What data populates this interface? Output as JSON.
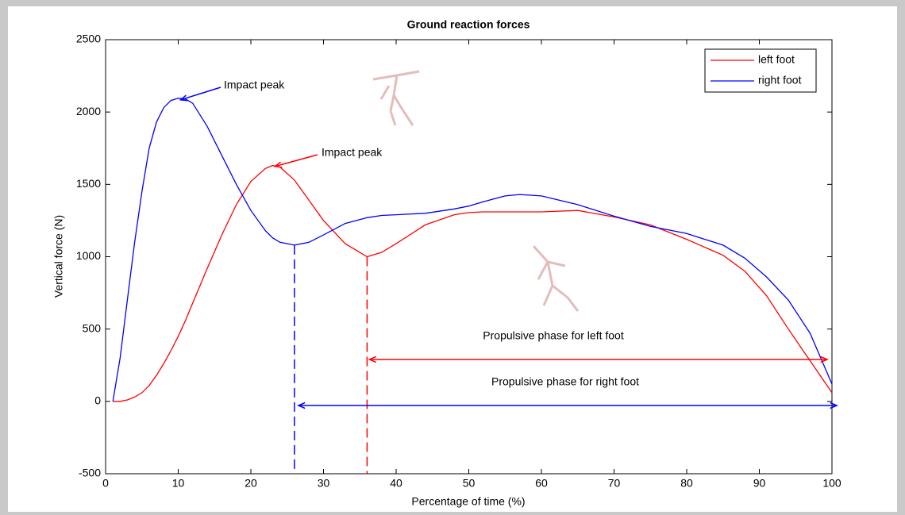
{
  "chart_data": {
    "type": "line",
    "title": "Ground reaction forces",
    "xlabel": "Percentage of time (%)",
    "ylabel": "Vertical force (N)",
    "x": [
      1,
      2,
      3,
      4,
      5,
      6,
      7,
      8,
      9,
      10,
      11,
      12,
      14,
      16,
      18,
      20,
      22,
      23,
      24,
      26,
      28,
      30,
      33,
      36,
      38,
      40,
      44,
      48,
      50,
      52,
      55,
      57,
      60,
      65,
      70,
      75,
      80,
      85,
      88,
      91,
      94,
      97,
      100
    ],
    "series": [
      {
        "name": "left foot",
        "color": "#ff0000",
        "values": [
          0,
          0,
          10,
          30,
          60,
          110,
          180,
          260,
          350,
          450,
          560,
          680,
          920,
          1150,
          1360,
          1520,
          1610,
          1630,
          1620,
          1530,
          1390,
          1250,
          1090,
          1000,
          1030,
          1090,
          1220,
          1290,
          1305,
          1310,
          1310,
          1310,
          1310,
          1320,
          1275,
          1220,
          1120,
          1010,
          900,
          730,
          500,
          280,
          60
        ]
      },
      {
        "name": "right foot",
        "color": "#0000ff",
        "values": [
          0,
          300,
          700,
          1100,
          1450,
          1750,
          1930,
          2030,
          2080,
          2095,
          2090,
          2060,
          1900,
          1700,
          1500,
          1320,
          1180,
          1130,
          1100,
          1080,
          1100,
          1150,
          1230,
          1270,
          1285,
          1290,
          1300,
          1330,
          1350,
          1380,
          1420,
          1430,
          1420,
          1360,
          1280,
          1210,
          1160,
          1080,
          990,
          860,
          700,
          470,
          120
        ]
      }
    ],
    "annotations": [
      {
        "text": "Impact peak",
        "color": "#0000ff"
      },
      {
        "text": "Impact peak",
        "color": "#ff0000"
      },
      {
        "text": "Propulsive phase for left foot",
        "color": "#ff0000"
      },
      {
        "text": "Propulsive phase for right foot",
        "color": "#0000ff"
      }
    ],
    "xlim": [
      0,
      100
    ],
    "ylim": [
      -500,
      2500
    ],
    "xticks": [
      0,
      10,
      20,
      30,
      40,
      50,
      60,
      70,
      80,
      90,
      100
    ],
    "yticks": [
      -500,
      0,
      500,
      1000,
      1500,
      2000,
      2500
    ],
    "grid": false,
    "legend": "northeast"
  }
}
